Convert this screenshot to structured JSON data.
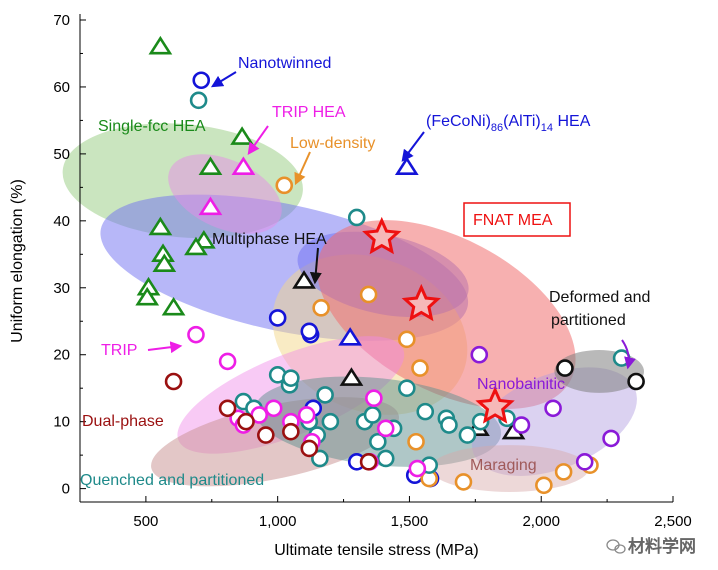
{
  "chart_data": {
    "type": "scatter",
    "xlabel": "Ultimate tensile stress (MPa)",
    "ylabel": "Uniform elongation (%)",
    "xlim": [
      250,
      2500
    ],
    "ylim": [
      -2,
      70
    ],
    "x_ticks": [
      "500",
      "1,000",
      "1,500",
      "2,000",
      "2,500"
    ],
    "x_tick_values": [
      500,
      1000,
      1500,
      2000,
      2500
    ],
    "y_ticks": [
      "0",
      "10",
      "20",
      "30",
      "40",
      "50",
      "60",
      "70"
    ],
    "y_tick_values": [
      0,
      10,
      20,
      30,
      40,
      50,
      60,
      70
    ],
    "colors": {
      "green": "#1a8a1a",
      "blue": "#1414d8",
      "magenta": "#ee1ee6",
      "orange": "#e8912a",
      "teal": "#1e8a8a",
      "darkred": "#9a1010",
      "purple": "#8a1ad8",
      "black": "#111111",
      "red": "#ee1111"
    },
    "regions": [
      {
        "name": "Single-fcc HEA",
        "fill": "#9fd08a",
        "opacity": 0.55,
        "cx": 640,
        "cy": 46,
        "rx": 215,
        "ry": 18,
        "angle": -85
      },
      {
        "name": "Nanotwinned",
        "fill": "#6f6ff2",
        "opacity": 0.5,
        "cx": 1025,
        "cy": 33,
        "rx": 240,
        "ry": 28,
        "angle": -78
      },
      {
        "name": "TRIP HEA",
        "fill": "#e58de8",
        "opacity": 0.5,
        "cx": 800,
        "cy": 44,
        "rx": 130,
        "ry": 9,
        "angle": -66
      },
      {
        "name": "Low-density",
        "fill": "#f3d88a",
        "opacity": 0.5,
        "cx": 1350,
        "cy": 23,
        "rx": 290,
        "ry": 15,
        "angle": -68
      },
      {
        "name": "(FeCoNi)86(AlTi)14 HEA",
        "fill": "#6f6ff2",
        "opacity": 0.5,
        "cx": 1400,
        "cy": 32,
        "rx": 150,
        "ry": 13,
        "angle": -78
      },
      {
        "name": "FNAT MEA",
        "fill": "#f07070",
        "opacity": 0.55,
        "cx": 1640,
        "cy": 26,
        "rx": 290,
        "ry": 21,
        "angle": -62
      },
      {
        "name": "TRIP",
        "fill": "#f08ae8",
        "opacity": 0.45,
        "cx": 1050,
        "cy": 14,
        "rx": 460,
        "ry": 6,
        "angle": -22
      },
      {
        "name": "Dual-phase",
        "fill": "#c89090",
        "opacity": 0.5,
        "cx": 990,
        "cy": 7,
        "rx": 480,
        "ry": 5.5,
        "angle": -12
      },
      {
        "name": "Quenched and partitioned",
        "fill": "#5f8f8f",
        "opacity": 0.5,
        "cx": 1380,
        "cy": 10,
        "rx": 470,
        "ry": 6.5,
        "angle": 6
      },
      {
        "name": "Nanobainitic",
        "fill": "#b09be0",
        "opacity": 0.45,
        "cx": 2050,
        "cy": 10,
        "rx": 330,
        "ry": 7,
        "angle": -22
      },
      {
        "name": "Maraging",
        "fill": "#d8a8a8",
        "opacity": 0.45,
        "cx": 1880,
        "cy": 3,
        "rx": 300,
        "ry": 3.5,
        "angle": 0
      },
      {
        "name": "Deformed and partitioned",
        "fill": "#808080",
        "opacity": 0.55,
        "cx": 2220,
        "cy": 17.5,
        "rx": 170,
        "ry": 3.2,
        "angle": 0
      }
    ],
    "series": [
      {
        "name": "Single-fcc HEA",
        "marker": "triangle",
        "color": "green",
        "points": [
          [
            555,
            66
          ],
          [
            865,
            52.5
          ],
          [
            745,
            48
          ],
          [
            555,
            39
          ],
          [
            565,
            35
          ],
          [
            570,
            33.5
          ],
          [
            720,
            37
          ],
          [
            690,
            36
          ],
          [
            510,
            30
          ],
          [
            505,
            28.5
          ],
          [
            605,
            27
          ]
        ]
      },
      {
        "name": "Nanotwinned",
        "marker": "circle",
        "color": "blue",
        "points": [
          [
            710,
            61
          ],
          [
            1000,
            25.5
          ],
          [
            1125,
            23
          ],
          [
            1120,
            23.5
          ],
          [
            1135,
            12
          ],
          [
            1300,
            4
          ],
          [
            1580,
            1.5
          ],
          [
            1520,
            2
          ]
        ]
      },
      {
        "name": "TRIP HEA",
        "marker": "triangle",
        "color": "magenta",
        "points": [
          [
            870,
            48
          ],
          [
            745,
            42
          ]
        ]
      },
      {
        "name": "(FeCoNi)86(AlTi)14 HEA",
        "marker": "triangle",
        "color": "blue",
        "points": [
          [
            1490,
            48
          ],
          [
            1275,
            22.5
          ]
        ]
      },
      {
        "name": "Multiphase HEA",
        "marker": "triangle",
        "color": "black",
        "points": [
          [
            1100,
            31
          ],
          [
            1280,
            16.5
          ],
          [
            1760,
            9
          ],
          [
            1895,
            8.5
          ]
        ]
      },
      {
        "name": "Low-density",
        "marker": "circle",
        "color": "orange",
        "points": [
          [
            1025,
            45.3
          ],
          [
            1165,
            27
          ],
          [
            1345,
            29
          ],
          [
            1490,
            22.3
          ],
          [
            1540,
            18
          ],
          [
            1525,
            7
          ],
          [
            1575,
            1.5
          ],
          [
            1705,
            1
          ],
          [
            2010,
            0.5
          ],
          [
            2085,
            2.5
          ],
          [
            2185,
            3.5
          ]
        ]
      },
      {
        "name": "Quenched and partitioned",
        "marker": "circle",
        "color": "teal",
        "points": [
          [
            700,
            58
          ],
          [
            1300,
            40.5
          ],
          [
            1000,
            17
          ],
          [
            1045,
            15.5
          ],
          [
            1050,
            16.5
          ],
          [
            1120,
            10
          ],
          [
            1180,
            14
          ],
          [
            1150,
            8
          ],
          [
            1330,
            10
          ],
          [
            1360,
            11
          ],
          [
            1380,
            7
          ],
          [
            1410,
            4.5
          ],
          [
            1440,
            9
          ],
          [
            1490,
            15
          ],
          [
            1560,
            11.5
          ],
          [
            1640,
            10.5
          ],
          [
            1650,
            9.5
          ],
          [
            1720,
            8
          ],
          [
            1770,
            10
          ],
          [
            1870,
            10.5
          ],
          [
            2305,
            19.5
          ],
          [
            870,
            13
          ],
          [
            910,
            12
          ],
          [
            1160,
            4.5
          ],
          [
            1575,
            3.5
          ],
          [
            1200,
            10
          ]
        ]
      },
      {
        "name": "TRIP",
        "marker": "circle",
        "color": "magenta",
        "points": [
          [
            690,
            23
          ],
          [
            810,
            19
          ],
          [
            850,
            10.5
          ],
          [
            870,
            9.5
          ],
          [
            930,
            11
          ],
          [
            985,
            12
          ],
          [
            1050,
            10
          ],
          [
            1110,
            11
          ],
          [
            1130,
            7
          ],
          [
            1365,
            13.5
          ],
          [
            1350,
            4
          ],
          [
            1410,
            9
          ],
          [
            1530,
            3
          ]
        ]
      },
      {
        "name": "Dual-phase",
        "marker": "circle",
        "color": "darkred",
        "points": [
          [
            605,
            16
          ],
          [
            810,
            12
          ],
          [
            880,
            10
          ],
          [
            955,
            8
          ],
          [
            1050,
            8.5
          ],
          [
            1120,
            6
          ],
          [
            1345,
            4
          ]
        ]
      },
      {
        "name": "Nanobainitic",
        "marker": "circle",
        "color": "purple",
        "points": [
          [
            1765,
            20
          ],
          [
            1925,
            9.5
          ],
          [
            2045,
            12
          ],
          [
            2165,
            4
          ],
          [
            2265,
            7.5
          ]
        ]
      },
      {
        "name": "Deformed and partitioned",
        "marker": "circle",
        "color": "black",
        "points": [
          [
            2090,
            18
          ],
          [
            2360,
            16
          ]
        ]
      },
      {
        "name": "FNAT MEA",
        "marker": "star",
        "color": "red",
        "points": [
          [
            1395,
            37.5
          ],
          [
            1545,
            27.5
          ],
          [
            1825,
            12.2
          ]
        ]
      }
    ],
    "annotations": [
      {
        "key": "nanotwinned",
        "text": "Nanotwinned",
        "color": "blue"
      },
      {
        "key": "single_fcc",
        "text": "Single-fcc HEA",
        "color": "green"
      },
      {
        "key": "trip_hea",
        "text": "TRIP HEA",
        "color": "magenta"
      },
      {
        "key": "low_density",
        "text": "Low-density",
        "color": "orange"
      },
      {
        "key": "feconi",
        "text": "(FeCoNi)",
        "sub1": "86",
        "mid": "(AlTi)",
        "sub2": "14",
        "tail": " HEA",
        "color": "blue"
      },
      {
        "key": "multiphase",
        "text": "Multiphase HEA",
        "color": "black"
      },
      {
        "key": "fnat",
        "text": "FNAT MEA",
        "color": "red"
      },
      {
        "key": "deformed1",
        "text": "Deformed and",
        "color": "black"
      },
      {
        "key": "deformed2",
        "text": "partitioned",
        "color": "black"
      },
      {
        "key": "trip",
        "text": "TRIP",
        "color": "magenta"
      },
      {
        "key": "nanobainitic",
        "text": "Nanobainitic",
        "color": "purple"
      },
      {
        "key": "dual_phase",
        "text": "Dual-phase",
        "color": "darkred"
      },
      {
        "key": "quenched",
        "text": "Quenched and partitioned",
        "color": "teal"
      },
      {
        "key": "maraging",
        "text": "Maraging",
        "color": "maraging"
      }
    ]
  },
  "watermark": {
    "text": "材料学网",
    "color": "#666666"
  }
}
